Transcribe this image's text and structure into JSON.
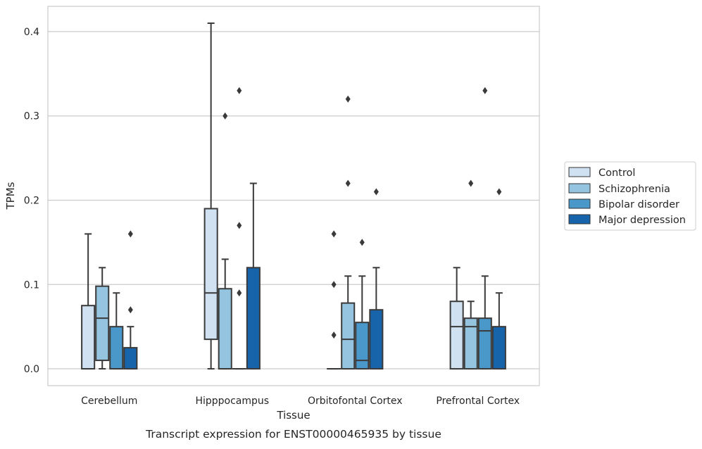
{
  "chart_data": {
    "type": "box",
    "xlabel": "Tissue",
    "ylabel": "TPMs",
    "caption": "Transcript expression for ENST00000465935 by tissue",
    "ylim": [
      -0.02,
      0.43
    ],
    "yticks": [
      {
        "value": 0.0,
        "label": "0.0"
      },
      {
        "value": 0.1,
        "label": "0.1"
      },
      {
        "value": 0.2,
        "label": "0.2"
      },
      {
        "value": 0.3,
        "label": "0.3"
      },
      {
        "value": 0.4,
        "label": "0.4"
      }
    ],
    "grid": "horizontal",
    "legend_position": "right",
    "categories": [
      "Cerebellum",
      "Hipppocampus",
      "Orbitofontal Cortex",
      "Prefrontal Cortex"
    ],
    "series": [
      {
        "name": "Control",
        "color": "#d0e1f2",
        "boxes": [
          {
            "q1": 0.0,
            "median": 0.0,
            "q3": 0.075,
            "whisker_low": 0.0,
            "whisker_high": 0.16,
            "outliers": []
          },
          {
            "q1": 0.035,
            "median": 0.09,
            "q3": 0.19,
            "whisker_low": 0.0,
            "whisker_high": 0.41,
            "outliers": []
          },
          {
            "q1": 0.0,
            "median": 0.0,
            "q3": 0.0,
            "whisker_low": 0.0,
            "whisker_high": 0.0,
            "outliers": [
              0.04,
              0.1,
              0.16
            ]
          },
          {
            "q1": 0.0,
            "median": 0.05,
            "q3": 0.08,
            "whisker_low": 0.0,
            "whisker_high": 0.12,
            "outliers": []
          }
        ]
      },
      {
        "name": "Schizophrenia",
        "color": "#94c4df",
        "boxes": [
          {
            "q1": 0.01,
            "median": 0.06,
            "q3": 0.098,
            "whisker_low": 0.0,
            "whisker_high": 0.12,
            "outliers": []
          },
          {
            "q1": 0.0,
            "median": 0.0,
            "q3": 0.095,
            "whisker_low": 0.0,
            "whisker_high": 0.13,
            "outliers": [
              0.3
            ]
          },
          {
            "q1": 0.0,
            "median": 0.035,
            "q3": 0.078,
            "whisker_low": 0.0,
            "whisker_high": 0.11,
            "outliers": [
              0.22,
              0.32
            ]
          },
          {
            "q1": 0.0,
            "median": 0.05,
            "q3": 0.06,
            "whisker_low": 0.0,
            "whisker_high": 0.08,
            "outliers": [
              0.22
            ]
          }
        ]
      },
      {
        "name": "Bipolar disorder",
        "color": "#4a98c9",
        "boxes": [
          {
            "q1": 0.0,
            "median": 0.0,
            "q3": 0.05,
            "whisker_low": 0.0,
            "whisker_high": 0.09,
            "outliers": []
          },
          {
            "q1": 0.0,
            "median": 0.0,
            "q3": 0.0,
            "whisker_low": 0.0,
            "whisker_high": 0.0,
            "outliers": [
              0.09,
              0.17,
              0.33
            ]
          },
          {
            "q1": 0.0,
            "median": 0.01,
            "q3": 0.055,
            "whisker_low": 0.0,
            "whisker_high": 0.11,
            "outliers": [
              0.15
            ]
          },
          {
            "q1": 0.0,
            "median": 0.045,
            "q3": 0.06,
            "whisker_low": 0.0,
            "whisker_high": 0.11,
            "outliers": [
              0.33
            ]
          }
        ]
      },
      {
        "name": "Major depression",
        "color": "#1764ab",
        "boxes": [
          {
            "q1": 0.0,
            "median": 0.0,
            "q3": 0.025,
            "whisker_low": 0.0,
            "whisker_high": 0.05,
            "outliers": [
              0.07,
              0.16
            ]
          },
          {
            "q1": 0.0,
            "median": 0.0,
            "q3": 0.12,
            "whisker_low": 0.0,
            "whisker_high": 0.22,
            "outliers": []
          },
          {
            "q1": 0.0,
            "median": 0.0,
            "q3": 0.07,
            "whisker_low": 0.0,
            "whisker_high": 0.12,
            "outliers": [
              0.21
            ]
          },
          {
            "q1": 0.0,
            "median": 0.0,
            "q3": 0.05,
            "whisker_low": 0.0,
            "whisker_high": 0.09,
            "outliers": [
              0.21
            ]
          }
        ]
      }
    ]
  }
}
